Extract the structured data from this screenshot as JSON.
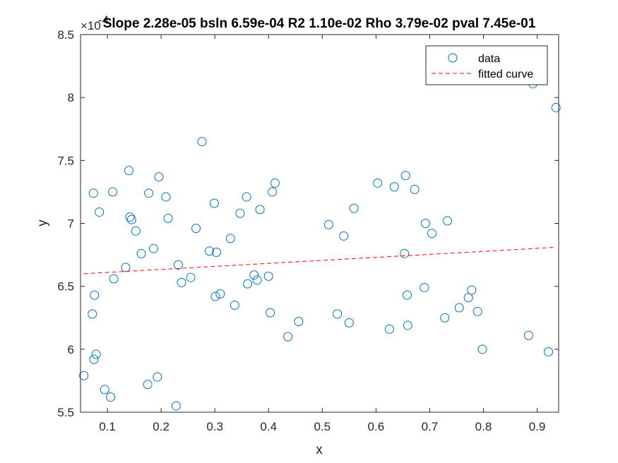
{
  "chart_data": {
    "type": "scatter",
    "title": "Slope 2.28e-05 bsln 6.59e-04 R2 1.10e-02 Rho 3.79e-02 pval 7.45e-01",
    "xlabel": "x",
    "ylabel": "y",
    "y_exponent_base": "×10",
    "y_exponent_power": "-4",
    "xlim": [
      0.05,
      0.94
    ],
    "ylim": [
      5.5,
      8.5
    ],
    "x_ticks": [
      0.1,
      0.2,
      0.3,
      0.4,
      0.5,
      0.6,
      0.7,
      0.8,
      0.9
    ],
    "x_tick_labels": [
      "0.1",
      "0.2",
      "0.3",
      "0.4",
      "0.5",
      "0.6",
      "0.7",
      "0.8",
      "0.9"
    ],
    "y_ticks": [
      5.5,
      6,
      6.5,
      7,
      7.5,
      8,
      8.5
    ],
    "y_tick_labels": [
      "5.5",
      "6",
      "6.5",
      "7",
      "7.5",
      "8",
      "8.5"
    ],
    "grid": false,
    "legend_position": "top-right",
    "series": [
      {
        "name": "data",
        "marker": "open-circle",
        "color": "#0072BD",
        "points": [
          [
            0.056,
            5.79
          ],
          [
            0.072,
            6.28
          ],
          [
            0.074,
            7.24
          ],
          [
            0.075,
            5.92
          ],
          [
            0.076,
            6.43
          ],
          [
            0.079,
            5.96
          ],
          [
            0.085,
            7.09
          ],
          [
            0.095,
            5.68
          ],
          [
            0.106,
            5.62
          ],
          [
            0.11,
            7.25
          ],
          [
            0.112,
            6.56
          ],
          [
            0.134,
            6.65
          ],
          [
            0.14,
            7.42
          ],
          [
            0.142,
            7.05
          ],
          [
            0.145,
            7.03
          ],
          [
            0.153,
            6.94
          ],
          [
            0.163,
            6.76
          ],
          [
            0.175,
            5.72
          ],
          [
            0.177,
            7.24
          ],
          [
            0.186,
            6.8
          ],
          [
            0.193,
            5.78
          ],
          [
            0.196,
            7.37
          ],
          [
            0.209,
            7.21
          ],
          [
            0.213,
            7.04
          ],
          [
            0.228,
            5.55
          ],
          [
            0.232,
            6.67
          ],
          [
            0.238,
            6.53
          ],
          [
            0.255,
            6.57
          ],
          [
            0.265,
            6.96
          ],
          [
            0.276,
            7.65
          ],
          [
            0.29,
            6.78
          ],
          [
            0.299,
            7.16
          ],
          [
            0.301,
            6.42
          ],
          [
            0.303,
            6.77
          ],
          [
            0.31,
            6.44
          ],
          [
            0.329,
            6.88
          ],
          [
            0.337,
            6.35
          ],
          [
            0.347,
            7.08
          ],
          [
            0.359,
            7.21
          ],
          [
            0.361,
            6.52
          ],
          [
            0.373,
            6.59
          ],
          [
            0.379,
            6.55
          ],
          [
            0.384,
            7.11
          ],
          [
            0.4,
            6.58
          ],
          [
            0.403,
            6.29
          ],
          [
            0.407,
            7.25
          ],
          [
            0.412,
            7.32
          ],
          [
            0.436,
            6.1
          ],
          [
            0.456,
            6.22
          ],
          [
            0.512,
            6.99
          ],
          [
            0.528,
            6.28
          ],
          [
            0.54,
            6.9
          ],
          [
            0.55,
            6.21
          ],
          [
            0.559,
            7.12
          ],
          [
            0.603,
            7.32
          ],
          [
            0.625,
            6.16
          ],
          [
            0.634,
            7.29
          ],
          [
            0.653,
            6.76
          ],
          [
            0.655,
            7.38
          ],
          [
            0.658,
            6.43
          ],
          [
            0.659,
            6.19
          ],
          [
            0.672,
            7.27
          ],
          [
            0.69,
            6.49
          ],
          [
            0.692,
            7.0
          ],
          [
            0.704,
            6.92
          ],
          [
            0.728,
            6.25
          ],
          [
            0.733,
            7.02
          ],
          [
            0.755,
            6.33
          ],
          [
            0.772,
            6.41
          ],
          [
            0.778,
            6.47
          ],
          [
            0.789,
            6.3
          ],
          [
            0.798,
            6.0
          ],
          [
            0.884,
            6.11
          ],
          [
            0.892,
            8.11
          ],
          [
            0.921,
            5.98
          ],
          [
            0.935,
            7.92
          ]
        ]
      },
      {
        "name": "fitted curve",
        "type": "line",
        "style": "dashed",
        "color": "#FF0000",
        "x": [
          0.056,
          0.935
        ],
        "y": [
          6.6,
          6.81
        ]
      }
    ]
  }
}
